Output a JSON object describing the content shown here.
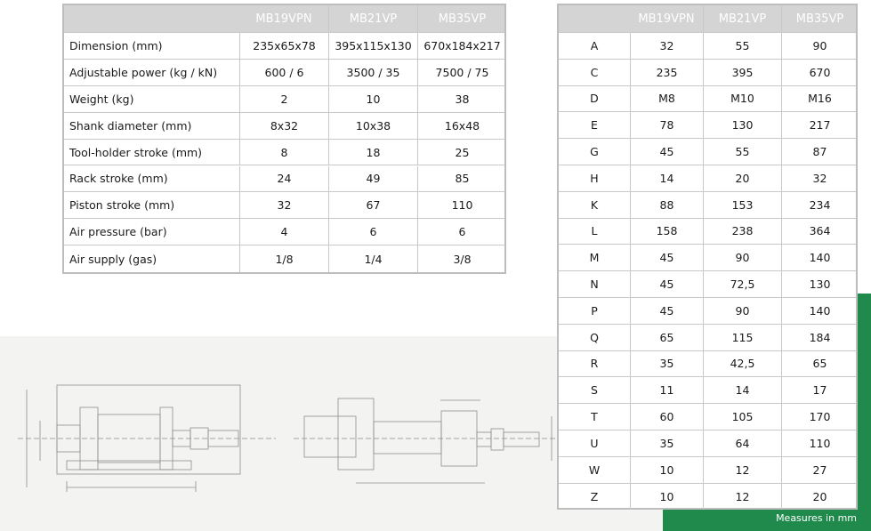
{
  "spec_table": {
    "columns": [
      "MB19VPN",
      "MB21VP",
      "MB35VP"
    ],
    "rows": [
      {
        "label": "Dimension (mm)",
        "values": [
          "235x65x78",
          "395x115x130",
          "670x184x217"
        ]
      },
      {
        "label": "Adjustable power (kg / kN)",
        "values": [
          "600 / 6",
          "3500 / 35",
          "7500 / 75"
        ]
      },
      {
        "label": "Weight (kg)",
        "values": [
          "2",
          "10",
          "38"
        ]
      },
      {
        "label": "Shank diameter (mm)",
        "values": [
          "8x32",
          "10x38",
          "16x48"
        ]
      },
      {
        "label": "Tool-holder stroke (mm)",
        "values": [
          "8",
          "18",
          "25"
        ]
      },
      {
        "label": "Rack stroke  (mm)",
        "values": [
          "24",
          "49",
          "85"
        ]
      },
      {
        "label": "Piston stroke (mm)",
        "values": [
          "32",
          "67",
          "110"
        ]
      },
      {
        "label": "Air pressure (bar)",
        "values": [
          "4",
          "6",
          "6"
        ]
      },
      {
        "label": "Air supply (gas)",
        "values": [
          "1/8",
          "1/4",
          "3/8"
        ]
      }
    ]
  },
  "dimension_table": {
    "columns": [
      "MB19VPN",
      "MB21VP",
      "MB35VP"
    ],
    "rows": [
      {
        "label": "A",
        "values": [
          "32",
          "55",
          "90"
        ]
      },
      {
        "label": "C",
        "values": [
          "235",
          "395",
          "670"
        ]
      },
      {
        "label": "D",
        "values": [
          "M8",
          "M10",
          "M16"
        ]
      },
      {
        "label": "E",
        "values": [
          "78",
          "130",
          "217"
        ]
      },
      {
        "label": "G",
        "values": [
          "45",
          "55",
          "87"
        ]
      },
      {
        "label": "H",
        "values": [
          "14",
          "20",
          "32"
        ]
      },
      {
        "label": "K",
        "values": [
          "88",
          "153",
          "234"
        ]
      },
      {
        "label": "L",
        "values": [
          "158",
          "238",
          "364"
        ]
      },
      {
        "label": "M",
        "values": [
          "45",
          "90",
          "140"
        ]
      },
      {
        "label": "N",
        "values": [
          "45",
          "72,5",
          "130"
        ]
      },
      {
        "label": "P",
        "values": [
          "45",
          "90",
          "140"
        ]
      },
      {
        "label": "Q",
        "values": [
          "65",
          "115",
          "184"
        ]
      },
      {
        "label": "R",
        "values": [
          "35",
          "42,5",
          "65"
        ]
      },
      {
        "label": "S",
        "values": [
          "11",
          "14",
          "17"
        ]
      },
      {
        "label": "T",
        "values": [
          "60",
          "105",
          "170"
        ]
      },
      {
        "label": "U",
        "values": [
          "35",
          "64",
          "110"
        ]
      },
      {
        "label": "W",
        "values": [
          "10",
          "12",
          "27"
        ]
      },
      {
        "label": "Z",
        "values": [
          "10",
          "12",
          "20"
        ]
      }
    ]
  },
  "footer_note": "Measures in mm"
}
